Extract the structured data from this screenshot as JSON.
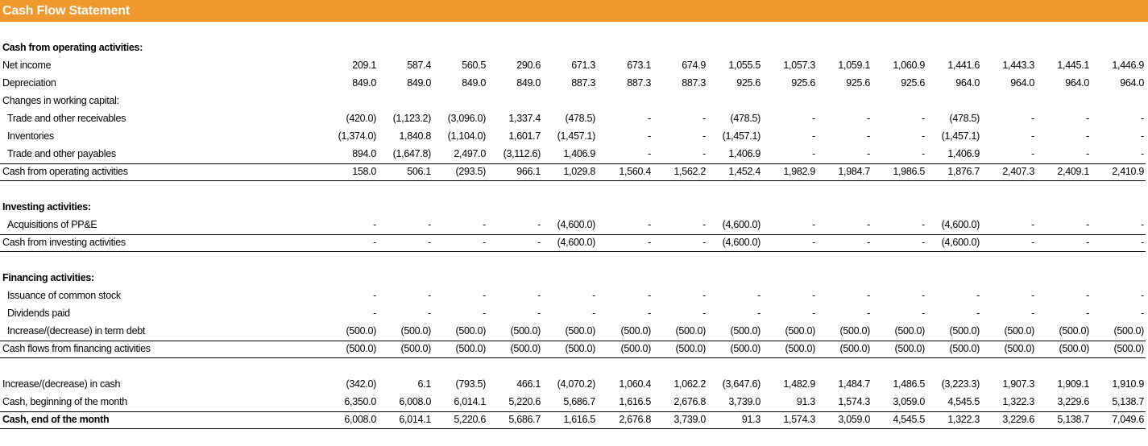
{
  "title": "Cash Flow Statement",
  "rows": [
    {
      "label": "Cash from operating activities:",
      "style": "header",
      "values": []
    },
    {
      "label": "Net income",
      "style": "normal",
      "values": [
        "209.1",
        "587.4",
        "560.5",
        "290.6",
        "671.3",
        "673.1",
        "674.9",
        "1,055.5",
        "1,057.3",
        "1,059.1",
        "1,060.9",
        "1,441.6",
        "1,443.3",
        "1,445.1",
        "1,446.9"
      ]
    },
    {
      "label": "Depreciation",
      "style": "normal",
      "values": [
        "849.0",
        "849.0",
        "849.0",
        "849.0",
        "887.3",
        "887.3",
        "887.3",
        "925.6",
        "925.6",
        "925.6",
        "925.6",
        "964.0",
        "964.0",
        "964.0",
        "964.0"
      ]
    },
    {
      "label": "Changes in working capital:",
      "style": "normal",
      "values": []
    },
    {
      "label": "Trade and other receivables",
      "style": "indent",
      "values": [
        "(420.0)",
        "(1,123.2)",
        "(3,096.0)",
        "1,337.4",
        "(478.5)",
        "-",
        "-",
        "(478.5)",
        "-",
        "-",
        "-",
        "(478.5)",
        "-",
        "-",
        "-"
      ]
    },
    {
      "label": "Inventories",
      "style": "indent",
      "values": [
        "(1,374.0)",
        "1,840.8",
        "(1,104.0)",
        "1,601.7",
        "(1,457.1)",
        "-",
        "-",
        "(1,457.1)",
        "-",
        "-",
        "-",
        "(1,457.1)",
        "-",
        "-",
        "-"
      ]
    },
    {
      "label": "Trade and other payables",
      "style": "indent",
      "values": [
        "894.0",
        "(1,647.8)",
        "2,497.0",
        "(3,112.6)",
        "1,406.9",
        "-",
        "-",
        "1,406.9",
        "-",
        "-",
        "-",
        "1,406.9",
        "-",
        "-",
        "-"
      ]
    },
    {
      "label": "Cash from operating activities",
      "style": "total",
      "values": [
        "158.0",
        "506.1",
        "(293.5)",
        "966.1",
        "1,029.8",
        "1,560.4",
        "1,562.2",
        "1,452.4",
        "1,982.9",
        "1,984.7",
        "1,986.5",
        "1,876.7",
        "2,407.3",
        "2,409.1",
        "2,410.9"
      ]
    },
    {
      "label": "",
      "style": "blank",
      "values": []
    },
    {
      "label": "Investing activities:",
      "style": "header",
      "values": []
    },
    {
      "label": "Acquisitions of PP&E",
      "style": "indent",
      "values": [
        "-",
        "-",
        "-",
        "-",
        "(4,600.0)",
        "-",
        "-",
        "(4,600.0)",
        "-",
        "-",
        "-",
        "(4,600.0)",
        "-",
        "-",
        "-"
      ]
    },
    {
      "label": "Cash from investing activities",
      "style": "total",
      "values": [
        "-",
        "-",
        "-",
        "-",
        "(4,600.0)",
        "-",
        "-",
        "(4,600.0)",
        "-",
        "-",
        "-",
        "(4,600.0)",
        "-",
        "-",
        "-"
      ]
    },
    {
      "label": "",
      "style": "blank",
      "values": []
    },
    {
      "label": "Financing activities:",
      "style": "header",
      "values": []
    },
    {
      "label": "Issuance of common stock",
      "style": "indent",
      "values": [
        "-",
        "-",
        "-",
        "-",
        "-",
        "-",
        "-",
        "-",
        "-",
        "-",
        "-",
        "-",
        "-",
        "-",
        "-"
      ]
    },
    {
      "label": "Dividends paid",
      "style": "indent",
      "values": [
        "-",
        "-",
        "-",
        "-",
        "-",
        "-",
        "-",
        "-",
        "-",
        "-",
        "-",
        "-",
        "-",
        "-",
        "-"
      ]
    },
    {
      "label": "Increase/(decrease) in term debt",
      "style": "indent",
      "values": [
        "(500.0)",
        "(500.0)",
        "(500.0)",
        "(500.0)",
        "(500.0)",
        "(500.0)",
        "(500.0)",
        "(500.0)",
        "(500.0)",
        "(500.0)",
        "(500.0)",
        "(500.0)",
        "(500.0)",
        "(500.0)",
        "(500.0)"
      ]
    },
    {
      "label": "Cash flows from financing activities",
      "style": "total",
      "values": [
        "(500.0)",
        "(500.0)",
        "(500.0)",
        "(500.0)",
        "(500.0)",
        "(500.0)",
        "(500.0)",
        "(500.0)",
        "(500.0)",
        "(500.0)",
        "(500.0)",
        "(500.0)",
        "(500.0)",
        "(500.0)",
        "(500.0)"
      ]
    },
    {
      "label": "",
      "style": "blank",
      "values": []
    },
    {
      "label": "Increase/(decrease) in cash",
      "style": "normal",
      "values": [
        "(342.0)",
        "6.1",
        "(793.5)",
        "466.1",
        "(4,070.2)",
        "1,060.4",
        "1,062.2",
        "(3,647.6)",
        "1,482.9",
        "1,484.7",
        "1,486.5",
        "(3,223.3)",
        "1,907.3",
        "1,909.1",
        "1,910.9"
      ]
    },
    {
      "label": "Cash, beginning of the month",
      "style": "normal",
      "values": [
        "6,350.0",
        "6,008.0",
        "6,014.1",
        "5,220.6",
        "5,686.7",
        "1,616.5",
        "2,676.8",
        "3,739.0",
        "91.3",
        "1,574.3",
        "3,059.0",
        "4,545.5",
        "1,322.3",
        "3,229.6",
        "5,138.7"
      ]
    },
    {
      "label": "Cash, end of the month",
      "style": "grand",
      "values": [
        "6,008.0",
        "6,014.1",
        "5,220.6",
        "5,686.7",
        "1,616.5",
        "2,676.8",
        "3,739.0",
        "91.3",
        "1,574.3",
        "3,059.0",
        "4,545.5",
        "1,322.3",
        "3,229.6",
        "5,138.7",
        "7,049.6"
      ]
    }
  ]
}
